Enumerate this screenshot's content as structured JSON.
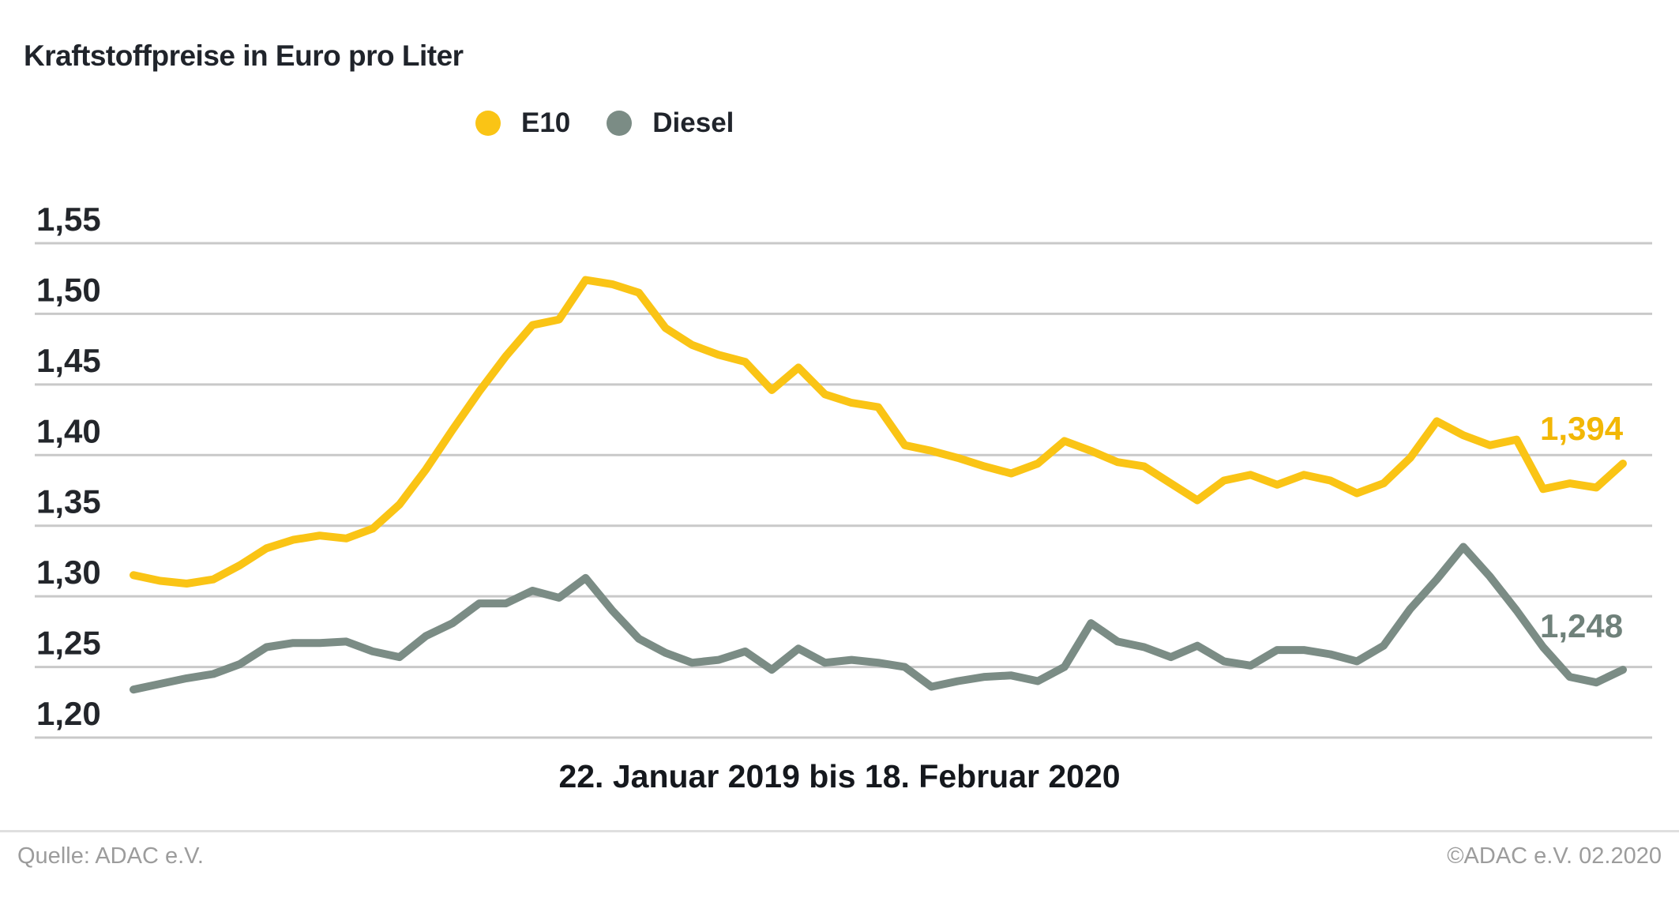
{
  "title": "Kraftstoffpreise in Euro pro Liter",
  "legend": [
    {
      "label": "E10",
      "color": "#FAC415"
    },
    {
      "label": "Diesel",
      "color": "#7B8C85"
    }
  ],
  "x_axis_label": "22. Januar 2019 bis 18. Februar 2020",
  "end_labels": [
    {
      "series": "E10",
      "text": "1,394",
      "color": "#F2B705"
    },
    {
      "series": "Diesel",
      "text": "1,248",
      "color": "#6F817A"
    }
  ],
  "footer": {
    "source": "Quelle: ADAC e.V.",
    "copyright": "©ADAC e.V.  02.2020"
  },
  "chart_data": {
    "type": "line",
    "title": "Kraftstoffpreise in Euro pro Liter",
    "xlabel": "22. Januar 2019 bis 18. Februar 2020",
    "ylabel": "Euro pro Liter",
    "x_description": "57 wöchentliche Messpunkte vom 22.01.2019 bis 18.02.2020",
    "start_date": "22. Januar 2019",
    "end_date": "18. Februar 2020",
    "ylim": [
      1.2,
      1.55
    ],
    "grid": true,
    "gridline_color": "#C9C9C9",
    "legend_position": "top-center",
    "yticks": [
      1.55,
      1.5,
      1.45,
      1.4,
      1.35,
      1.3,
      1.25,
      1.2
    ],
    "ytick_labels": [
      "1,55",
      "1,50",
      "1,45",
      "1,40",
      "1,35",
      "1,30",
      "1,25",
      "1,20"
    ],
    "series": [
      {
        "name": "E10",
        "color": "#FAC415",
        "last_value_label": "1,394",
        "values": [
          1.315,
          1.311,
          1.309,
          1.312,
          1.322,
          1.334,
          1.34,
          1.343,
          1.341,
          1.348,
          1.365,
          1.39,
          1.418,
          1.445,
          1.47,
          1.492,
          1.496,
          1.524,
          1.521,
          1.515,
          1.49,
          1.478,
          1.471,
          1.466,
          1.446,
          1.462,
          1.443,
          1.437,
          1.434,
          1.407,
          1.403,
          1.398,
          1.392,
          1.387,
          1.394,
          1.41,
          1.403,
          1.395,
          1.392,
          1.38,
          1.368,
          1.382,
          1.386,
          1.379,
          1.386,
          1.382,
          1.373,
          1.38,
          1.398,
          1.424,
          1.414,
          1.407,
          1.411,
          1.376,
          1.38,
          1.377,
          1.394
        ]
      },
      {
        "name": "Diesel",
        "color": "#7B8C85",
        "last_value_label": "1,248",
        "values": [
          1.234,
          1.238,
          1.242,
          1.245,
          1.252,
          1.264,
          1.267,
          1.267,
          1.268,
          1.261,
          1.257,
          1.272,
          1.281,
          1.295,
          1.295,
          1.304,
          1.299,
          1.313,
          1.29,
          1.27,
          1.26,
          1.253,
          1.255,
          1.261,
          1.248,
          1.263,
          1.253,
          1.255,
          1.253,
          1.25,
          1.236,
          1.24,
          1.243,
          1.244,
          1.24,
          1.25,
          1.281,
          1.268,
          1.264,
          1.257,
          1.265,
          1.254,
          1.251,
          1.262,
          1.262,
          1.259,
          1.254,
          1.265,
          1.291,
          1.312,
          1.335,
          1.314,
          1.29,
          1.264,
          1.243,
          1.239,
          1.248
        ]
      }
    ]
  }
}
